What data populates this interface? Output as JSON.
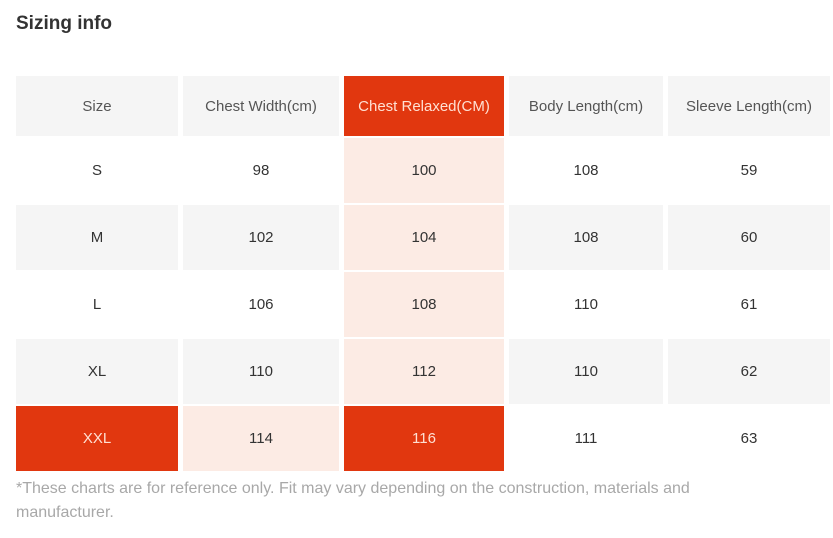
{
  "page": {
    "title": "Sizing info",
    "footnote": "*These charts are for reference only. Fit may vary depending on the construction, materials and manufacturer."
  },
  "colors": {
    "accent": "#e1370f",
    "accent_text": "#ffe0d3",
    "highlight_light": "#fcebe4",
    "row_alt": "#f5f5f5",
    "header_text": "#555555",
    "cell_text": "#333333",
    "footnote_text": "#a8a8a8"
  },
  "table": {
    "columns": [
      {
        "label": "Size",
        "highlighted": false
      },
      {
        "label": "Chest Width(cm)",
        "highlighted": false
      },
      {
        "label": "Chest Relaxed(CM)",
        "highlighted": true
      },
      {
        "label": "Body Length(cm)",
        "highlighted": false
      },
      {
        "label": "Sleeve Length(cm)",
        "highlighted": false
      }
    ],
    "rows": [
      {
        "size": "S",
        "cells": [
          {
            "text": "S",
            "style": "default"
          },
          {
            "text": "98",
            "style": "default"
          },
          {
            "text": "100",
            "style": "highlight-light"
          },
          {
            "text": "108",
            "style": "default"
          },
          {
            "text": "59",
            "style": "default"
          }
        ]
      },
      {
        "size": "M",
        "cells": [
          {
            "text": "M",
            "style": "default"
          },
          {
            "text": "102",
            "style": "default"
          },
          {
            "text": "104",
            "style": "highlight-light"
          },
          {
            "text": "108",
            "style": "default"
          },
          {
            "text": "60",
            "style": "default"
          }
        ]
      },
      {
        "size": "L",
        "cells": [
          {
            "text": "L",
            "style": "default"
          },
          {
            "text": "106",
            "style": "default"
          },
          {
            "text": "108",
            "style": "highlight-light"
          },
          {
            "text": "110",
            "style": "default"
          },
          {
            "text": "61",
            "style": "default"
          }
        ]
      },
      {
        "size": "XL",
        "cells": [
          {
            "text": "XL",
            "style": "default"
          },
          {
            "text": "110",
            "style": "default"
          },
          {
            "text": "112",
            "style": "highlight-light"
          },
          {
            "text": "110",
            "style": "default"
          },
          {
            "text": "62",
            "style": "default"
          }
        ]
      },
      {
        "size": "XXL",
        "cells": [
          {
            "text": "XXL",
            "style": "highlight-strong"
          },
          {
            "text": "114",
            "style": "highlight-light"
          },
          {
            "text": "116",
            "style": "highlight-strong"
          },
          {
            "text": "111",
            "style": "default"
          },
          {
            "text": "63",
            "style": "default"
          }
        ]
      }
    ]
  }
}
